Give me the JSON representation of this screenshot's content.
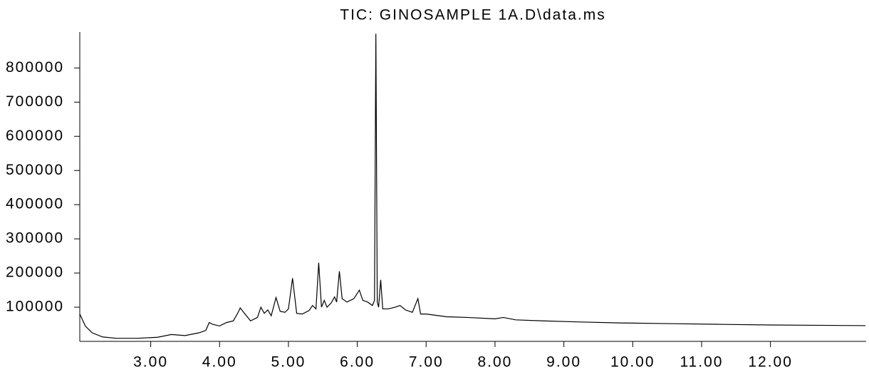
{
  "chart_data": {
    "type": "line",
    "title": "TIC: GINOSAMPLE 1A.D\\data.ms",
    "color": "#000000",
    "x": [
      1.97,
      2.05,
      2.15,
      2.3,
      2.5,
      2.8,
      3.1,
      3.3,
      3.5,
      3.7,
      3.8,
      3.85,
      3.9,
      4.0,
      4.1,
      4.2,
      4.27,
      4.3,
      4.35,
      4.45,
      4.55,
      4.6,
      4.65,
      4.7,
      4.75,
      4.82,
      4.88,
      4.95,
      5.0,
      5.06,
      5.12,
      5.2,
      5.3,
      5.35,
      5.4,
      5.44,
      5.48,
      5.52,
      5.56,
      5.62,
      5.67,
      5.7,
      5.74,
      5.78,
      5.85,
      5.95,
      6.03,
      6.08,
      6.15,
      6.22,
      6.25,
      6.27,
      6.29,
      6.31,
      6.34,
      6.37,
      6.45,
      6.55,
      6.62,
      6.7,
      6.8,
      6.88,
      6.92,
      7.0,
      7.3,
      7.6,
      8.0,
      8.12,
      8.3,
      8.7,
      9.2,
      9.8,
      10.5,
      11.2,
      12.0,
      12.7,
      13.38
    ],
    "values": [
      80000,
      45000,
      25000,
      13000,
      9000,
      9000,
      12000,
      20000,
      17000,
      25000,
      32000,
      55000,
      50000,
      45000,
      55000,
      60000,
      85000,
      98000,
      85000,
      60000,
      70000,
      100000,
      82000,
      92000,
      75000,
      128000,
      88000,
      85000,
      95000,
      185000,
      82000,
      80000,
      90000,
      105000,
      95000,
      230000,
      100000,
      120000,
      100000,
      112000,
      130000,
      115000,
      205000,
      125000,
      115000,
      125000,
      150000,
      120000,
      115000,
      105000,
      120000,
      900000,
      115000,
      100000,
      180000,
      95000,
      95000,
      100000,
      105000,
      92000,
      85000,
      125000,
      80000,
      80000,
      72000,
      70000,
      66000,
      70000,
      63000,
      60000,
      57000,
      54000,
      52000,
      50000,
      48000,
      47000,
      46000
    ],
    "xlim": [
      1.97,
      13.39
    ],
    "ylim": [
      0,
      905000
    ],
    "xticks": [
      {
        "value": 3,
        "label": "3.00"
      },
      {
        "value": 4,
        "label": "4.00"
      },
      {
        "value": 5,
        "label": "5.00"
      },
      {
        "value": 6,
        "label": "6.00"
      },
      {
        "value": 7,
        "label": "7.00"
      },
      {
        "value": 8,
        "label": "8.00"
      },
      {
        "value": 9,
        "label": "9.00"
      },
      {
        "value": 10,
        "label": "10.00"
      },
      {
        "value": 11,
        "label": "11.00"
      },
      {
        "value": 12,
        "label": "12.00"
      }
    ],
    "yticks": [
      100000,
      200000,
      300000,
      400000,
      500000,
      600000,
      700000,
      800000
    ]
  }
}
